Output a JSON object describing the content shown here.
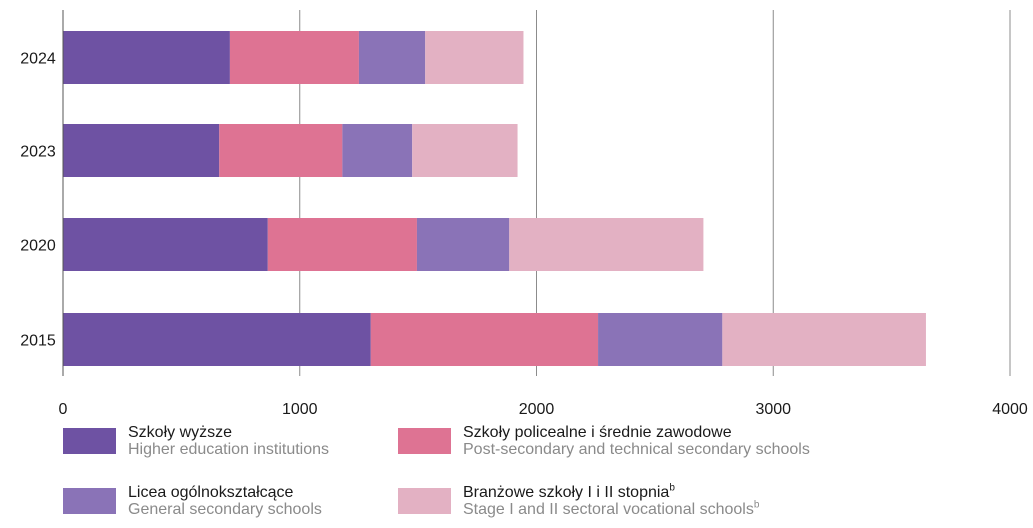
{
  "chart_data": {
    "type": "bar",
    "orientation": "horizontal",
    "stacked": true,
    "categories": [
      "2024",
      "2023",
      "2020",
      "2015"
    ],
    "series": [
      {
        "name": "Szkoły wyższe",
        "name_en": "Higher education institutions",
        "color": "#6e52a3",
        "values": [
          705,
          660,
          865,
          1300
        ]
      },
      {
        "name": "Szkoły policealne i średnie zawodowe",
        "name_en": "Post-secondary and technical secondary schools",
        "color": "#de7393",
        "values": [
          545,
          520,
          630,
          960
        ]
      },
      {
        "name": "Licea ogólnokształcące",
        "name_en": "General secondary schools",
        "color": "#8a73b7",
        "values": [
          280,
          295,
          390,
          525
        ]
      },
      {
        "name": "Branżowe szkoły I i II stopnia",
        "name_en": "Stage I and II sectoral vocational schools",
        "color": "#e3b1c3",
        "values": [
          415,
          445,
          820,
          860
        ]
      }
    ],
    "xlim": [
      0,
      4000
    ],
    "xticks": [
      0,
      1000,
      2000,
      3000,
      4000
    ],
    "grid": "vertical",
    "legend_position": "bottom"
  },
  "legend": {
    "items": [
      {
        "pl": "Szkoły wyższe",
        "en": "Higher education institutions",
        "sup": ""
      },
      {
        "pl": "Szkoły policealne i średnie zawodowe",
        "en": "Post-secondary and technical secondary schools",
        "sup": ""
      },
      {
        "pl": "Licea ogólnokształcące",
        "en": "General secondary schools",
        "sup": ""
      },
      {
        "pl": "Branżowe szkoły I i II stopnia",
        "en": "Stage I and II sectoral vocational schools",
        "sup": "b"
      }
    ]
  }
}
